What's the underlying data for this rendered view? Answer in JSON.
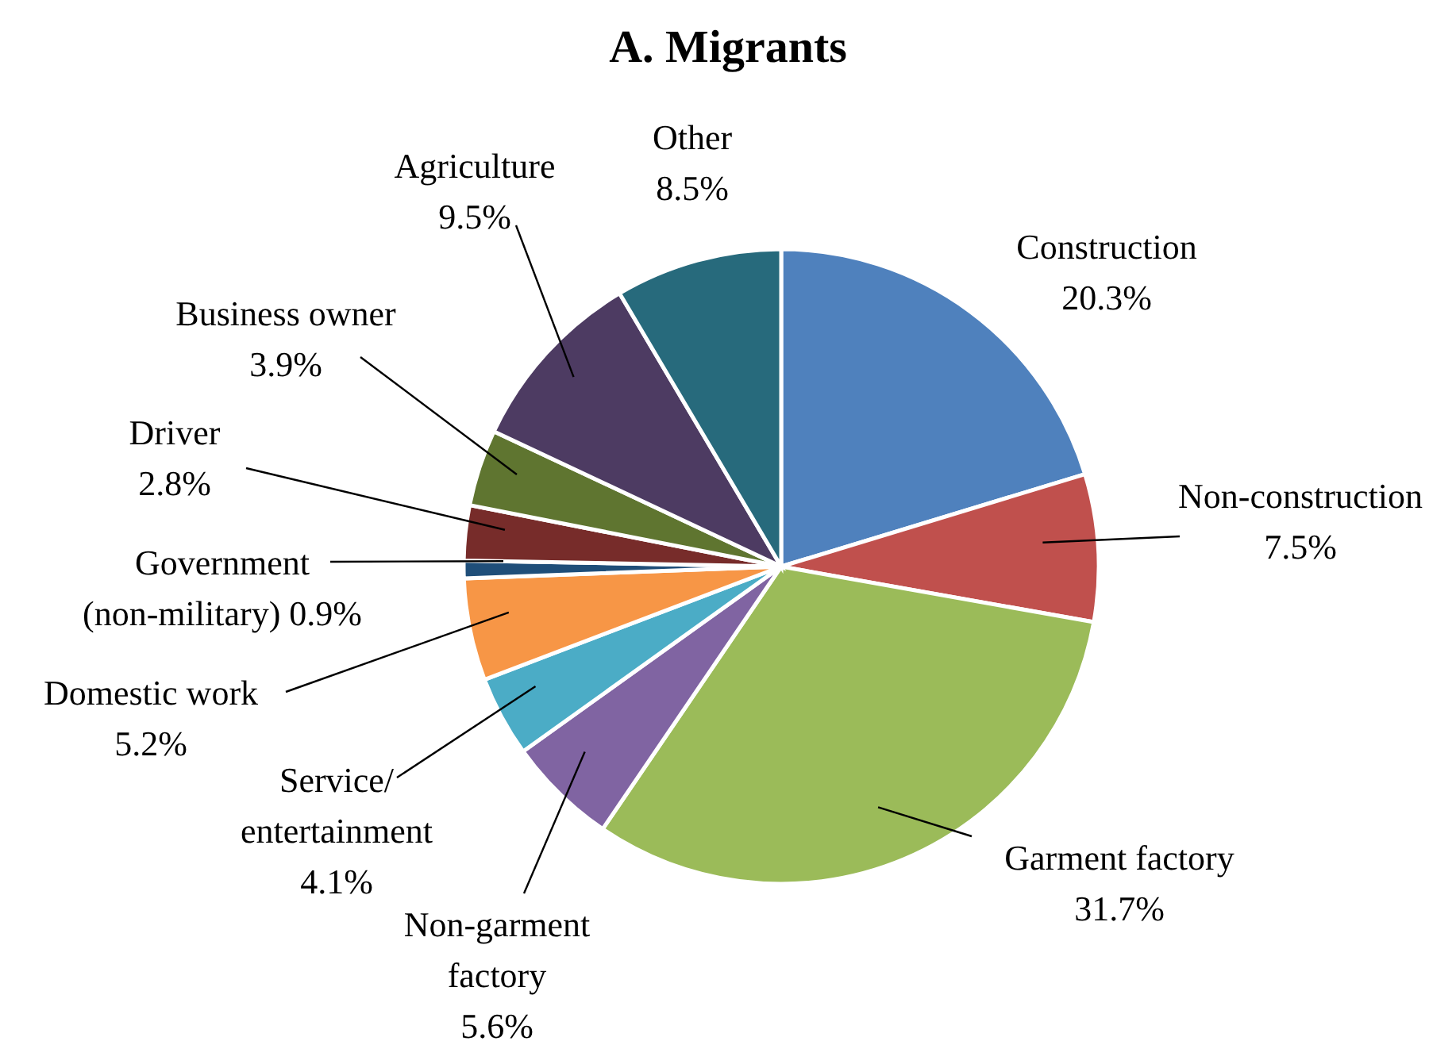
{
  "chart_data": {
    "type": "pie",
    "title": "A. Migrants",
    "categories": [
      "Construction",
      "Non-construction",
      "Garment factory",
      "Non-garment factory",
      "Service/entertainment",
      "Domestic work",
      "Government (non-military)",
      "Driver",
      "Business owner",
      "Agriculture",
      "Other"
    ],
    "values": [
      20.3,
      7.5,
      31.7,
      5.6,
      4.1,
      5.2,
      0.9,
      2.8,
      3.9,
      9.5,
      8.5
    ],
    "colors": [
      "#4f81bd",
      "#c0504d",
      "#9bbb59",
      "#8064a2",
      "#4bacc6",
      "#f79646",
      "#1f4e79",
      "#772c2a",
      "#5f7530",
      "#4d3b62",
      "#276a7c"
    ],
    "value_labels": [
      "20.3%",
      "7.5%",
      "31.7%",
      "5.6%",
      "4.1%",
      "5.2%",
      "0.9%",
      "2.8%",
      "3.9%",
      "9.5%",
      "8.5%"
    ]
  }
}
